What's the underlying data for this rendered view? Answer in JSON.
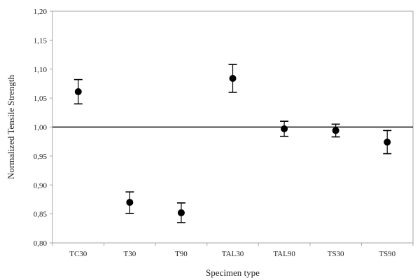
{
  "chart_data": {
    "type": "scatter",
    "title": "",
    "xlabel": "Specimen type",
    "ylabel": "Normalized Tensile Strength",
    "categories": [
      "TC30",
      "T30",
      "T90",
      "TAL30",
      "TAL90",
      "TS30",
      "TS90"
    ],
    "series": [
      {
        "values": [
          1.061,
          0.87,
          0.852,
          1.084,
          0.997,
          0.994,
          0.974
        ],
        "error_low": [
          1.04,
          0.851,
          0.835,
          1.06,
          0.984,
          0.983,
          0.954
        ],
        "error_high": [
          1.082,
          0.888,
          0.869,
          1.108,
          1.01,
          1.005,
          0.994
        ]
      }
    ],
    "ylim": [
      0.8,
      1.2
    ],
    "yticks": [
      0.8,
      0.85,
      0.9,
      0.95,
      1.0,
      1.05,
      1.1,
      1.15,
      1.2
    ],
    "ytick_labels": [
      "0,80",
      "0,85",
      "0,90",
      "0,95",
      "1,00",
      "1,05",
      "1,10",
      "1,15",
      "1,20"
    ],
    "reference_line": 1.0,
    "grid": false,
    "marker_color": "#000000",
    "axis_color": "#a6a6a6"
  }
}
